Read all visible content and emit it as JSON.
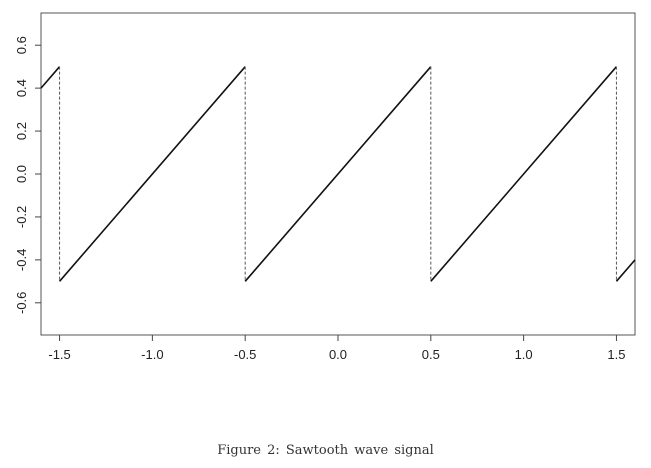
{
  "chart_data": {
    "type": "line",
    "title": "",
    "xlabel": "",
    "ylabel": "",
    "xlim": [
      -1.6,
      1.6
    ],
    "ylim": [
      -0.75,
      0.75
    ],
    "x_ticks": [
      -1.5,
      -1.0,
      -0.5,
      0.0,
      0.5,
      1.0,
      1.5
    ],
    "x_tick_labels": [
      "-1.5",
      "-1.0",
      "-0.5",
      "0.0",
      "0.5",
      "1.0",
      "1.5"
    ],
    "y_ticks": [
      -0.6,
      -0.4,
      -0.2,
      0.0,
      0.2,
      0.4,
      0.6
    ],
    "y_tick_labels": [
      "-0.6",
      "-0.4",
      "-0.2",
      "0.0",
      "0.2",
      "0.4",
      "0.6"
    ],
    "grid": false,
    "series": [
      {
        "style": "solid",
        "color": "#111111",
        "segments": [
          {
            "x": [
              -1.6,
              -1.5
            ],
            "y": [
              0.4,
              0.5
            ]
          },
          {
            "x": [
              -1.5,
              -0.5
            ],
            "y": [
              -0.5,
              0.5
            ]
          },
          {
            "x": [
              -0.5,
              0.5
            ],
            "y": [
              -0.5,
              0.5
            ]
          },
          {
            "x": [
              0.5,
              1.5
            ],
            "y": [
              -0.5,
              0.5
            ]
          },
          {
            "x": [
              1.5,
              1.6
            ],
            "y": [
              -0.5,
              -0.4
            ]
          }
        ]
      },
      {
        "style": "dashed",
        "color": "#555555",
        "segments": [
          {
            "x": [
              -1.5,
              -1.5
            ],
            "y": [
              0.5,
              -0.5
            ]
          },
          {
            "x": [
              -0.5,
              -0.5
            ],
            "y": [
              0.5,
              -0.5
            ]
          },
          {
            "x": [
              0.5,
              0.5
            ],
            "y": [
              0.5,
              -0.5
            ]
          },
          {
            "x": [
              1.5,
              1.5
            ],
            "y": [
              0.5,
              -0.5
            ]
          }
        ]
      }
    ]
  },
  "caption": "Figure 2:   Sawtooth wave signal"
}
